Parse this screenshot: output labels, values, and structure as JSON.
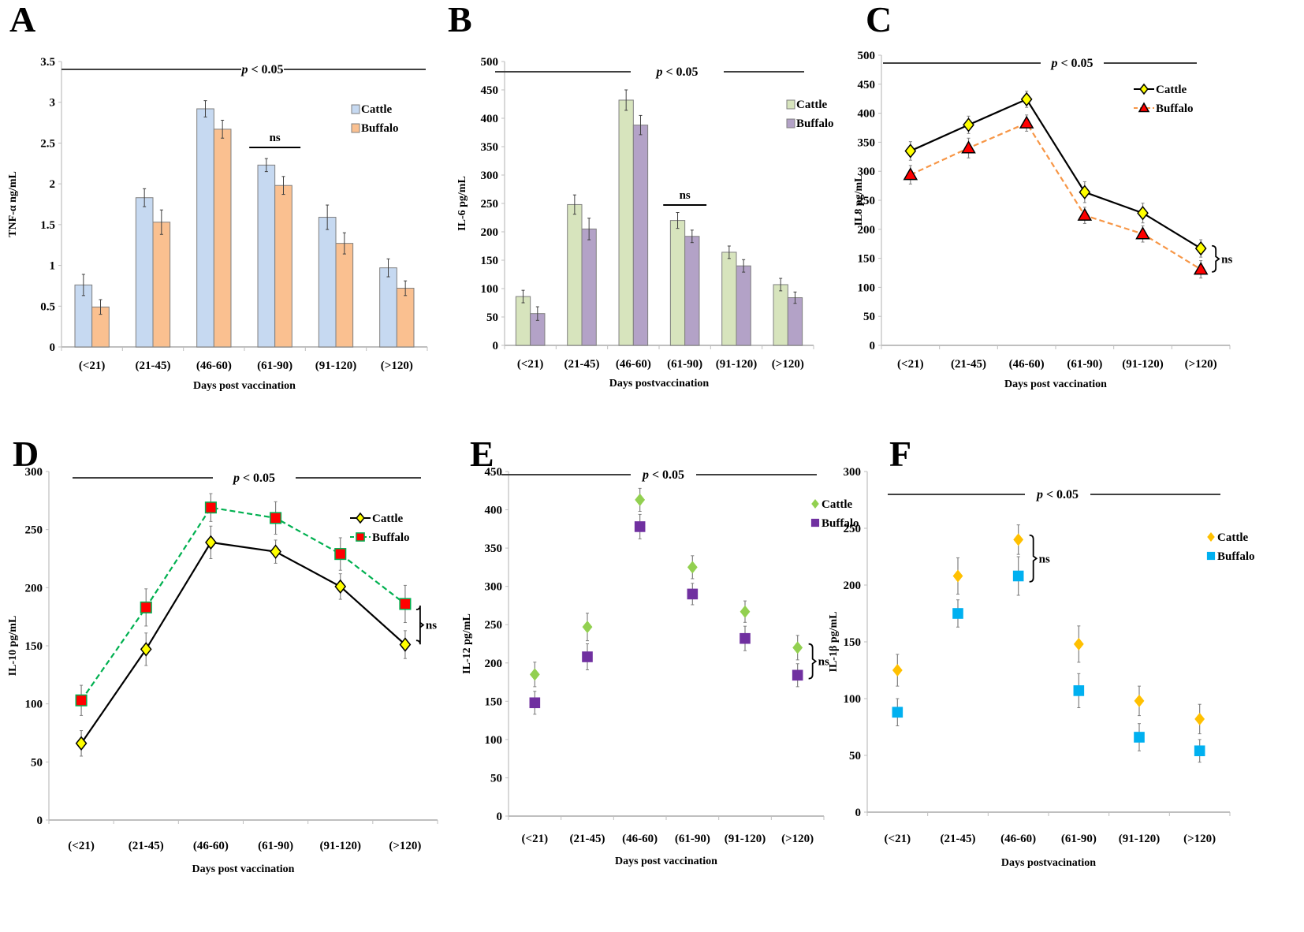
{
  "figure": {
    "panel_letters": [
      "A",
      "B",
      "C",
      "D",
      "E",
      "F"
    ]
  },
  "chart_data": [
    {
      "panel": "A",
      "type": "bar",
      "title": "",
      "xlabel": "Days post vaccination",
      "ylabel": "TNF-α ng/mL",
      "categories": [
        "(<21)",
        "(21-45)",
        "(46-60)",
        "(61-90)",
        "(91-120)",
        "(>120)"
      ],
      "ylim": [
        0,
        3.5
      ],
      "yticks": [
        "0",
        "0.5",
        "1",
        "1.5",
        "2",
        "2.5",
        "3",
        "3.5"
      ],
      "series": [
        {
          "name": "Cattle",
          "color": "#c6d9f1",
          "values": [
            0.76,
            1.83,
            2.92,
            2.23,
            1.59,
            0.97
          ],
          "errors": [
            0.13,
            0.11,
            0.1,
            0.08,
            0.15,
            0.11
          ]
        },
        {
          "name": "Buffalo",
          "color": "#fac090",
          "values": [
            0.49,
            1.53,
            2.67,
            1.98,
            1.27,
            0.72
          ],
          "errors": [
            0.09,
            0.15,
            0.11,
            0.11,
            0.13,
            0.09
          ]
        }
      ],
      "annotations": {
        "significance": "p < 0.05",
        "ns_label": "ns",
        "ns_bracket": "over (61-90) bars"
      },
      "legend": "right"
    },
    {
      "panel": "B",
      "type": "bar",
      "title": "",
      "xlabel": "Days postvaccination",
      "ylabel": "IL-6 pg/mL",
      "categories": [
        "(<21)",
        "(21-45)",
        "(46-60)",
        "(61-90)",
        "(91-120)",
        "(>120)"
      ],
      "ylim": [
        0,
        500
      ],
      "yticks": [
        "0",
        "50",
        "100",
        "150",
        "200",
        "250",
        "300",
        "350",
        "400",
        "450",
        "500"
      ],
      "series": [
        {
          "name": "Cattle",
          "color": "#d7e4bd",
          "values": [
            86,
            248,
            432,
            220,
            164,
            107
          ],
          "errors": [
            11,
            17,
            18,
            14,
            11,
            11
          ]
        },
        {
          "name": "Buffalo",
          "color": "#b3a2c7",
          "values": [
            56,
            205,
            388,
            192,
            140,
            84
          ],
          "errors": [
            12,
            19,
            17,
            11,
            11,
            10
          ]
        }
      ],
      "annotations": {
        "significance": "p < 0.05",
        "ns_label": "ns",
        "ns_bracket": "over (61-90) bars"
      },
      "legend": "right"
    },
    {
      "panel": "C",
      "type": "line",
      "title": "",
      "xlabel": "Days post vaccination",
      "ylabel": "IL8 pg/mL",
      "categories": [
        "(<21)",
        "(21-45)",
        "(46-60)",
        "(61-90)",
        "(91-120)",
        "(>120)"
      ],
      "ylim": [
        0,
        500
      ],
      "yticks": [
        "0",
        "50",
        "100",
        "150",
        "200",
        "250",
        "300",
        "350",
        "400",
        "450",
        "500"
      ],
      "series": [
        {
          "name": "Cattle",
          "color": "#000000",
          "marker": "diamond",
          "marker_fill": "#ffff00",
          "dash": false,
          "values": [
            335,
            380,
            424,
            264,
            228,
            167
          ],
          "errors": [
            16,
            15,
            14,
            18,
            17,
            15
          ]
        },
        {
          "name": "Buffalo",
          "color": "#f79646",
          "marker": "triangle",
          "marker_fill": "#ff0000",
          "dash": true,
          "values": [
            294,
            340,
            383,
            224,
            192,
            131
          ],
          "errors": [
            16,
            17,
            14,
            14,
            14,
            15
          ]
        }
      ],
      "annotations": {
        "significance": "p < 0.05",
        "ns_label": "ns",
        "ns_bracket": "at (>120)"
      },
      "legend": "top-right"
    },
    {
      "panel": "D",
      "type": "line",
      "title": "",
      "xlabel": "Days post vaccination",
      "ylabel": "IL-10 pg/mL",
      "categories": [
        "(<21)",
        "(21-45)",
        "(46-60)",
        "(61-90)",
        "(91-120)",
        "(>120)"
      ],
      "ylim": [
        0,
        300
      ],
      "yticks": [
        "0",
        "50",
        "100",
        "150",
        "200",
        "250",
        "300"
      ],
      "series": [
        {
          "name": "Cattle",
          "color": "#000000",
          "marker": "diamond",
          "marker_fill": "#ffff00",
          "dash": false,
          "values": [
            66,
            147,
            239,
            231,
            201,
            151
          ],
          "errors": [
            11,
            14,
            14,
            10,
            11,
            12
          ]
        },
        {
          "name": "Buffalo",
          "color": "#00b050",
          "marker": "square",
          "marker_fill": "#ff0000",
          "dash": true,
          "values": [
            103,
            183,
            269,
            260,
            229,
            186
          ],
          "errors": [
            13,
            16,
            12,
            14,
            14,
            16
          ]
        }
      ],
      "annotations": {
        "significance": "p < 0.05",
        "ns_label": "ns",
        "ns_bracket": "at (>120)"
      },
      "legend": "right"
    },
    {
      "panel": "E",
      "type": "scatter",
      "title": "",
      "xlabel": "Days post vaccination",
      "ylabel": "IL-12 pg/mL",
      "categories": [
        "(<21)",
        "(21-45)",
        "(46-60)",
        "(61-90)",
        "(91-120)",
        "(>120)"
      ],
      "ylim": [
        0,
        450
      ],
      "yticks": [
        "0",
        "50",
        "100",
        "150",
        "200",
        "250",
        "300",
        "350",
        "400",
        "450"
      ],
      "series": [
        {
          "name": "Cattle",
          "color": "#92d050",
          "marker": "diamond",
          "values": [
            185,
            247,
            413,
            325,
            267,
            220
          ],
          "errors": [
            16,
            18,
            15,
            15,
            14,
            16
          ]
        },
        {
          "name": "Buffalo",
          "color": "#7030a0",
          "marker": "square",
          "values": [
            148,
            208,
            378,
            290,
            232,
            184
          ],
          "errors": [
            15,
            17,
            16,
            14,
            16,
            15
          ]
        }
      ],
      "annotations": {
        "significance": "p < 0.05",
        "ns_label": "ns",
        "ns_bracket": "at (>120)"
      },
      "legend": "right"
    },
    {
      "panel": "F",
      "type": "scatter",
      "title": "",
      "xlabel": "Days postvacination",
      "ylabel": "IL-1β pg/mL",
      "categories": [
        "(<21)",
        "(21-45)",
        "(46-60)",
        "(61-90)",
        "(91-120)",
        "(>120)"
      ],
      "ylim": [
        0,
        300
      ],
      "yticks": [
        "0",
        "50",
        "100",
        "150",
        "200",
        "250",
        "300"
      ],
      "series": [
        {
          "name": "Cattle",
          "color": "#ffc000",
          "marker": "diamond",
          "values": [
            125,
            208,
            240,
            148,
            98,
            82
          ],
          "errors": [
            14,
            16,
            13,
            16,
            13,
            13
          ]
        },
        {
          "name": "Buffalo",
          "color": "#00b0f0",
          "marker": "square",
          "values": [
            88,
            175,
            208,
            107,
            66,
            54
          ],
          "errors": [
            12,
            12,
            17,
            15,
            12,
            10
          ]
        }
      ],
      "annotations": {
        "significance": "p < 0.05",
        "ns_label": "ns",
        "ns_bracket": "at (46-60)"
      },
      "legend": "right"
    }
  ]
}
